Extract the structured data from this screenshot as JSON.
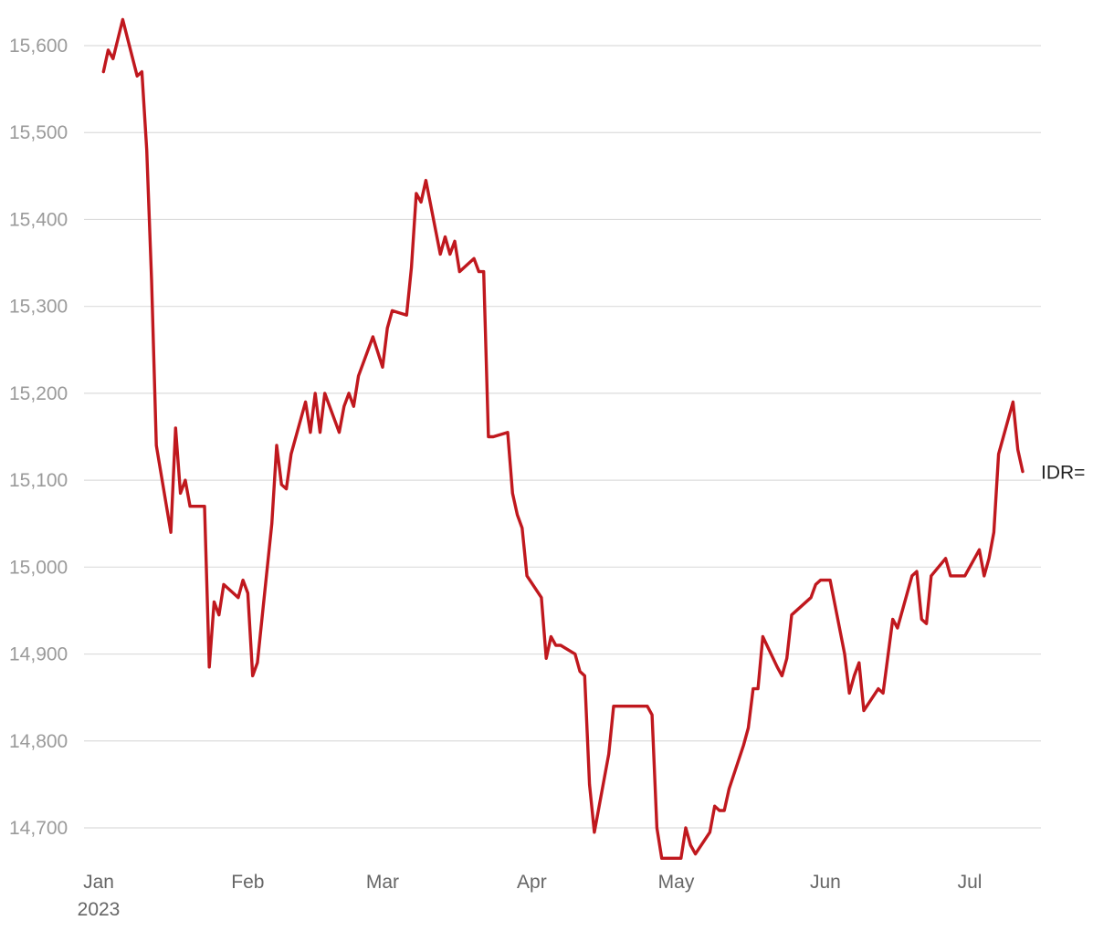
{
  "chart_data": {
    "type": "line",
    "title": "",
    "xlabel": "",
    "ylabel": "",
    "ylim": [
      14670,
      15630
    ],
    "xlim": [
      "2023-01-02",
      "2023-07-20"
    ],
    "grid": true,
    "y_ticks": [
      {
        "value": 14700,
        "label": "14,700"
      },
      {
        "value": 14800,
        "label": "14,800"
      },
      {
        "value": 14900,
        "label": "14,900"
      },
      {
        "value": 15000,
        "label": "15,000"
      },
      {
        "value": 15100,
        "label": "15,100"
      },
      {
        "value": 15200,
        "label": "15,200"
      },
      {
        "value": 15300,
        "label": "15,300"
      },
      {
        "value": 15400,
        "label": "15,400"
      },
      {
        "value": 15500,
        "label": "15,500"
      },
      {
        "value": 15600,
        "label": "15,600"
      }
    ],
    "x_ticks": [
      {
        "date": "2023-01-01",
        "label": "Jan",
        "sublabel": "2023"
      },
      {
        "date": "2023-02-01",
        "label": "Feb",
        "sublabel": ""
      },
      {
        "date": "2023-03-01",
        "label": "Mar",
        "sublabel": ""
      },
      {
        "date": "2023-04-01",
        "label": "Apr",
        "sublabel": ""
      },
      {
        "date": "2023-05-01",
        "label": "May",
        "sublabel": ""
      },
      {
        "date": "2023-06-01",
        "label": "Jun",
        "sublabel": ""
      },
      {
        "date": "2023-07-01",
        "label": "Jul",
        "sublabel": ""
      }
    ],
    "series": [
      {
        "name": "IDR=",
        "color": "#c0181e",
        "points": [
          [
            "2023-01-02",
            15570
          ],
          [
            "2023-01-03",
            15595
          ],
          [
            "2023-01-04",
            15585
          ],
          [
            "2023-01-06",
            15630
          ],
          [
            "2023-01-09",
            15565
          ],
          [
            "2023-01-10",
            15570
          ],
          [
            "2023-01-11",
            15480
          ],
          [
            "2023-01-12",
            15330
          ],
          [
            "2023-01-13",
            15140
          ],
          [
            "2023-01-16",
            15040
          ],
          [
            "2023-01-17",
            15160
          ],
          [
            "2023-01-18",
            15085
          ],
          [
            "2023-01-19",
            15100
          ],
          [
            "2023-01-20",
            15070
          ],
          [
            "2023-01-23",
            15070
          ],
          [
            "2023-01-24",
            14885
          ],
          [
            "2023-01-25",
            14960
          ],
          [
            "2023-01-26",
            14945
          ],
          [
            "2023-01-27",
            14980
          ],
          [
            "2023-01-30",
            14965
          ],
          [
            "2023-01-31",
            14985
          ],
          [
            "2023-02-01",
            14970
          ],
          [
            "2023-02-02",
            14875
          ],
          [
            "2023-02-03",
            14890
          ],
          [
            "2023-02-06",
            15050
          ],
          [
            "2023-02-07",
            15140
          ],
          [
            "2023-02-08",
            15095
          ],
          [
            "2023-02-09",
            15090
          ],
          [
            "2023-02-10",
            15130
          ],
          [
            "2023-02-13",
            15190
          ],
          [
            "2023-02-14",
            15155
          ],
          [
            "2023-02-15",
            15200
          ],
          [
            "2023-02-16",
            15155
          ],
          [
            "2023-02-17",
            15200
          ],
          [
            "2023-02-20",
            15155
          ],
          [
            "2023-02-21",
            15185
          ],
          [
            "2023-02-22",
            15200
          ],
          [
            "2023-02-23",
            15185
          ],
          [
            "2023-02-24",
            15220
          ],
          [
            "2023-02-27",
            15265
          ],
          [
            "2023-03-01",
            15230
          ],
          [
            "2023-03-02",
            15275
          ],
          [
            "2023-03-03",
            15295
          ],
          [
            "2023-03-06",
            15290
          ],
          [
            "2023-03-07",
            15345
          ],
          [
            "2023-03-08",
            15430
          ],
          [
            "2023-03-09",
            15420
          ],
          [
            "2023-03-10",
            15445
          ],
          [
            "2023-03-13",
            15360
          ],
          [
            "2023-03-14",
            15380
          ],
          [
            "2023-03-15",
            15360
          ],
          [
            "2023-03-16",
            15375
          ],
          [
            "2023-03-17",
            15340
          ],
          [
            "2023-03-20",
            15355
          ],
          [
            "2023-03-21",
            15340
          ],
          [
            "2023-03-22",
            15340
          ],
          [
            "2023-03-23",
            15150
          ],
          [
            "2023-03-24",
            15150
          ],
          [
            "2023-03-27",
            15155
          ],
          [
            "2023-03-28",
            15085
          ],
          [
            "2023-03-29",
            15060
          ],
          [
            "2023-03-30",
            15045
          ],
          [
            "2023-03-31",
            14990
          ],
          [
            "2023-04-03",
            14965
          ],
          [
            "2023-04-04",
            14895
          ],
          [
            "2023-04-05",
            14920
          ],
          [
            "2023-04-06",
            14910
          ],
          [
            "2023-04-07",
            14910
          ],
          [
            "2023-04-10",
            14900
          ],
          [
            "2023-04-11",
            14880
          ],
          [
            "2023-04-12",
            14875
          ],
          [
            "2023-04-13",
            14750
          ],
          [
            "2023-04-14",
            14695
          ],
          [
            "2023-04-17",
            14785
          ],
          [
            "2023-04-18",
            14840
          ],
          [
            "2023-04-25",
            14840
          ],
          [
            "2023-04-26",
            14830
          ],
          [
            "2023-04-27",
            14700
          ],
          [
            "2023-04-28",
            14665
          ],
          [
            "2023-05-02",
            14665
          ],
          [
            "2023-05-03",
            14700
          ],
          [
            "2023-05-04",
            14680
          ],
          [
            "2023-05-05",
            14670
          ],
          [
            "2023-05-08",
            14695
          ],
          [
            "2023-05-09",
            14725
          ],
          [
            "2023-05-10",
            14720
          ],
          [
            "2023-05-11",
            14720
          ],
          [
            "2023-05-12",
            14745
          ],
          [
            "2023-05-15",
            14795
          ],
          [
            "2023-05-16",
            14815
          ],
          [
            "2023-05-17",
            14860
          ],
          [
            "2023-05-18",
            14860
          ],
          [
            "2023-05-19",
            14920
          ],
          [
            "2023-05-22",
            14885
          ],
          [
            "2023-05-23",
            14875
          ],
          [
            "2023-05-24",
            14895
          ],
          [
            "2023-05-25",
            14945
          ],
          [
            "2023-05-29",
            14965
          ],
          [
            "2023-05-30",
            14980
          ],
          [
            "2023-05-31",
            14985
          ],
          [
            "2023-06-02",
            14985
          ],
          [
            "2023-06-05",
            14900
          ],
          [
            "2023-06-06",
            14855
          ],
          [
            "2023-06-07",
            14875
          ],
          [
            "2023-06-08",
            14890
          ],
          [
            "2023-06-09",
            14835
          ],
          [
            "2023-06-12",
            14860
          ],
          [
            "2023-06-13",
            14855
          ],
          [
            "2023-06-15",
            14940
          ],
          [
            "2023-06-16",
            14930
          ],
          [
            "2023-06-19",
            14990
          ],
          [
            "2023-06-20",
            14995
          ],
          [
            "2023-06-21",
            14940
          ],
          [
            "2023-06-22",
            14935
          ],
          [
            "2023-06-23",
            14990
          ],
          [
            "2023-06-26",
            15010
          ],
          [
            "2023-06-27",
            14990
          ],
          [
            "2023-06-30",
            14990
          ],
          [
            "2023-07-03",
            15020
          ],
          [
            "2023-07-04",
            14990
          ],
          [
            "2023-07-05",
            15010
          ],
          [
            "2023-07-06",
            15040
          ],
          [
            "2023-07-07",
            15130
          ],
          [
            "2023-07-10",
            15190
          ],
          [
            "2023-07-11",
            15135
          ],
          [
            "2023-07-12",
            15110
          ]
        ]
      }
    ]
  }
}
